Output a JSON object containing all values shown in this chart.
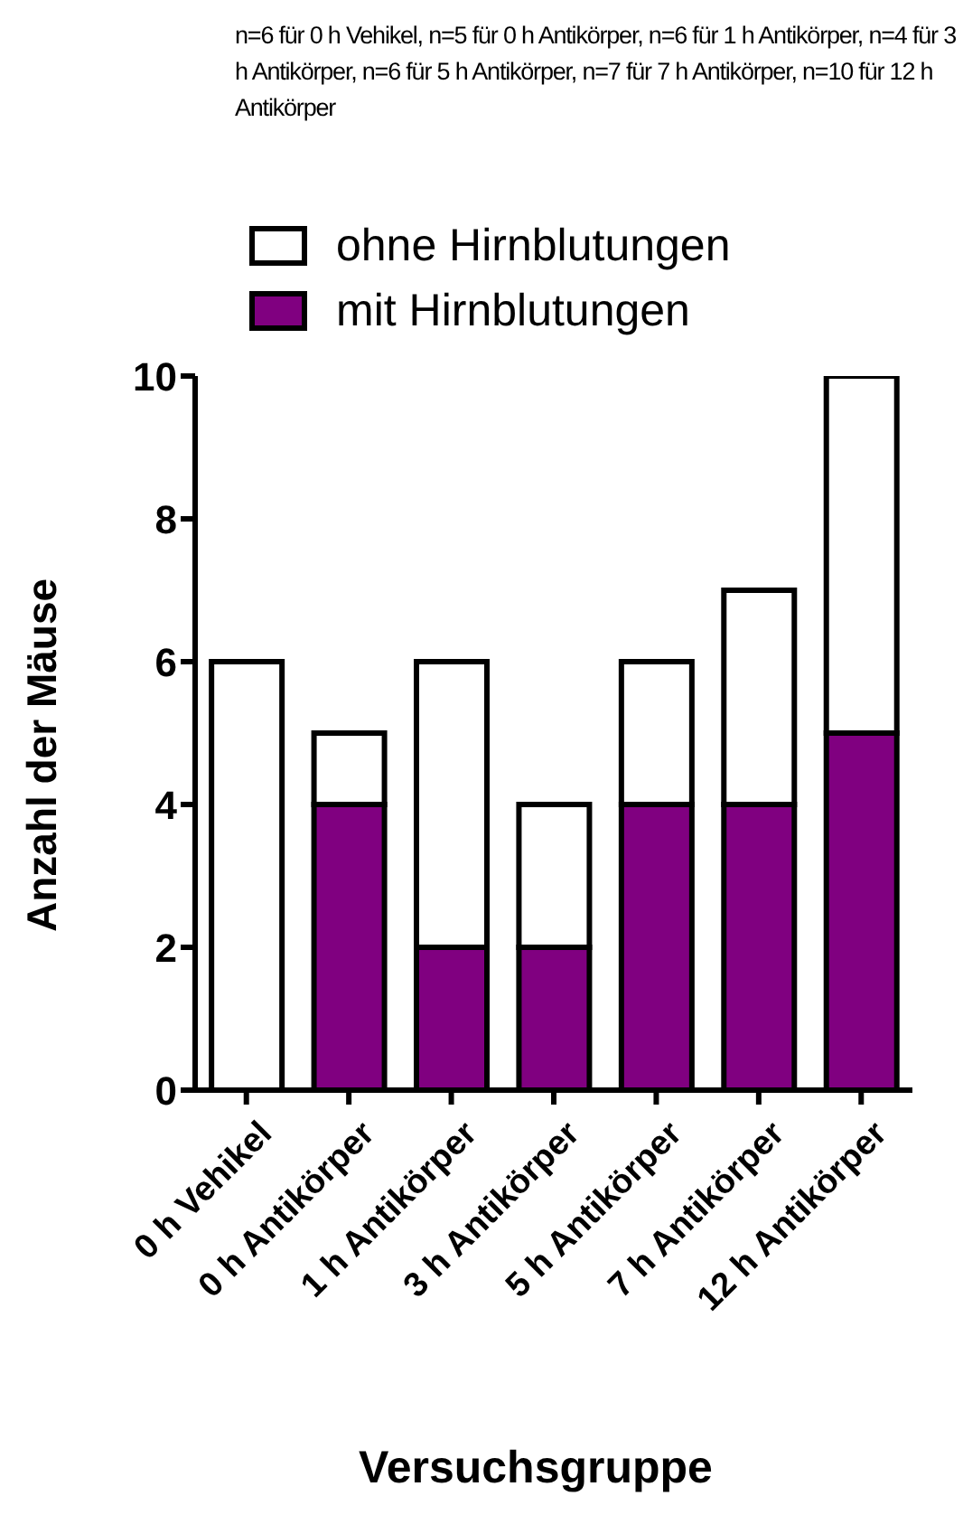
{
  "chart_data": {
    "type": "bar",
    "title": "n=6 für 0 h Vehikel, n=5 für 0 h Antikörper, n=6 für 1 h Antikörper, n=4 für 3 h Antikörper, n=6 für 5 h Antikörper, n=7 für 7 h Antikörper, n=10 für 12 h Antikörper",
    "xlabel": "Versuchsgruppe",
    "ylabel": "Anzahl der Mäuse",
    "categories": [
      "0 h Vehikel",
      "0 h Antikörper",
      "1 h Antikörper",
      "3 h Antikörper",
      "5 h Antikörper",
      "7 h Antikörper",
      "12 h Antikörper"
    ],
    "series": [
      {
        "name": "mit Hirnblutungen",
        "color": "#800080",
        "values": [
          0,
          4,
          2,
          2,
          4,
          4,
          5
        ]
      },
      {
        "name": "ohne Hirnblutungen",
        "color": "#ffffff",
        "values": [
          6,
          1,
          4,
          2,
          2,
          3,
          5
        ]
      }
    ],
    "stacked": true,
    "ylim": [
      0,
      10
    ],
    "yticks": [
      0,
      2,
      4,
      6,
      8,
      10
    ],
    "grid": false,
    "legend": "top"
  }
}
